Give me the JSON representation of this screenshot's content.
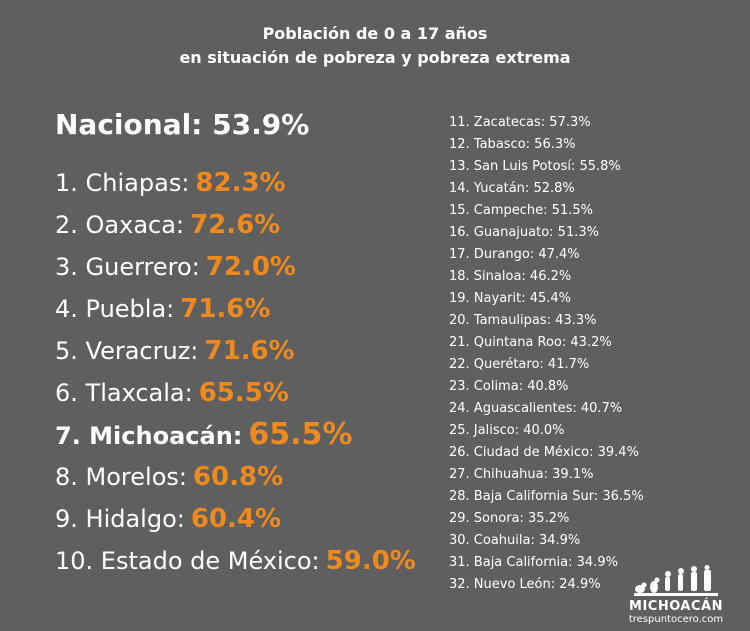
{
  "title": {
    "line1": "Población de 0 a 17 años",
    "line2": "en situación de pobreza y pobreza extrema"
  },
  "national": {
    "label": "Nacional:",
    "value": "53.9%"
  },
  "chart_data": {
    "type": "table",
    "title": "Población de 0 a 17 años en situación de pobreza y pobreza extrema",
    "highlight": "7. Michoacán:",
    "rows": [
      {
        "name": "1. Chiapas:",
        "value": 82.3
      },
      {
        "name": "2. Oaxaca:",
        "value": 72.6
      },
      {
        "name": "3. Guerrero:",
        "value": 72.0
      },
      {
        "name": "4. Puebla:",
        "value": 71.6
      },
      {
        "name": "5. Veracruz:",
        "value": 71.6
      },
      {
        "name": "6. Tlaxcala:",
        "value": 65.5
      },
      {
        "name": "7. Michoacán:",
        "value": 65.5
      },
      {
        "name": "8. Morelos:",
        "value": 60.8
      },
      {
        "name": "9. Hidalgo:",
        "value": 60.4
      },
      {
        "name": "10. Estado de México:",
        "value": 59.0
      },
      {
        "name": "11. Zacatecas:",
        "value": 57.3
      },
      {
        "name": "12. Tabasco:",
        "value": 56.3
      },
      {
        "name": "13. San Luis Potosí:",
        "value": 55.8
      },
      {
        "name": "14. Yucatán:",
        "value": 52.8
      },
      {
        "name": "15. Campeche:",
        "value": 51.5
      },
      {
        "name": "16. Guanajuato:",
        "value": 51.3
      },
      {
        "name": "17. Durango:",
        "value": 47.4
      },
      {
        "name": "18. Sinaloa:",
        "value": 46.2
      },
      {
        "name": "19. Nayarit:",
        "value": 45.4
      },
      {
        "name": "20. Tamaulipas:",
        "value": 43.3
      },
      {
        "name": "21. Quintana Roo:",
        "value": 43.2
      },
      {
        "name": "22. Querétaro:",
        "value": 41.7
      },
      {
        "name": "23. Colima:",
        "value": 40.8
      },
      {
        "name": "24. Aguascalientes:",
        "value": 40.7
      },
      {
        "name": "25. Jalisco:",
        "value": 40.0
      },
      {
        "name": "26. Ciudad de México:",
        "value": 39.4
      },
      {
        "name": "27. Chihuahua:",
        "value": 39.1
      },
      {
        "name": "28. Baja California Sur:",
        "value": 36.5
      },
      {
        "name": "29. Sonora:",
        "value": 35.2
      },
      {
        "name": "30. Coahuila:",
        "value": 34.9
      },
      {
        "name": "31. Baja California:",
        "value": 34.9
      },
      {
        "name": "32. Nuevo León:",
        "value": 24.9
      }
    ]
  },
  "brand": {
    "name": "MICHOACÁN",
    "site": "trespuntocero.com"
  },
  "colors": {
    "background": "#5f5f5f",
    "accent": "#f08a1c",
    "text": "#ffffff"
  }
}
